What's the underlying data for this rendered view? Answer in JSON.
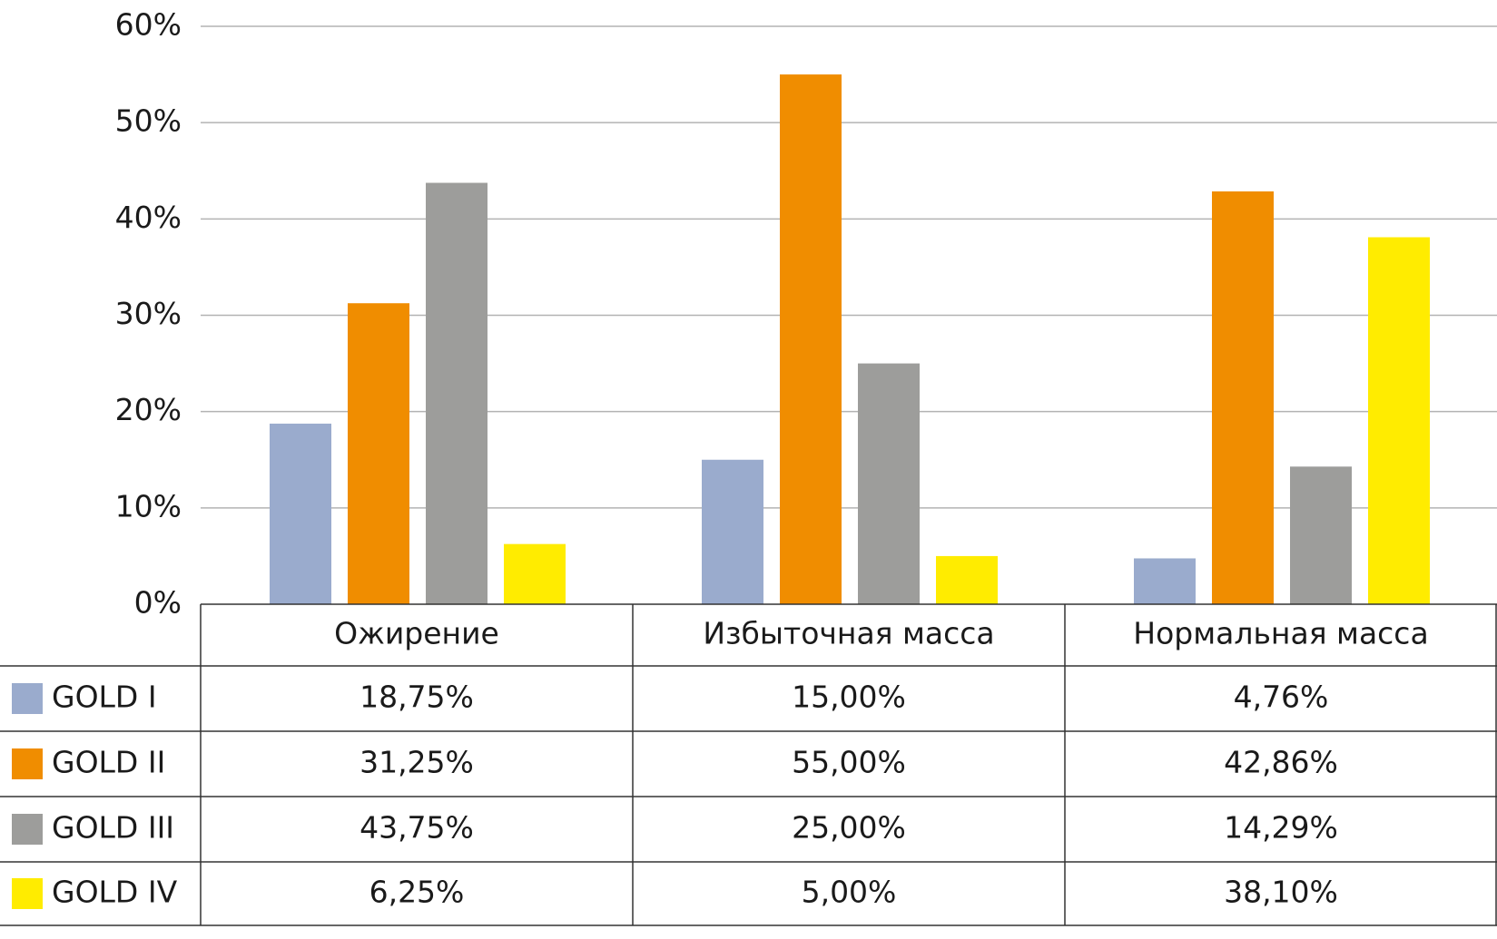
{
  "chart_data": {
    "type": "bar",
    "categories": [
      "Ожирение",
      "Избыточная масса",
      "Нормальная масса"
    ],
    "series": [
      {
        "name": "GOLD I",
        "color": "#9aabcd",
        "values": [
          18.75,
          15.0,
          4.76
        ],
        "value_labels": [
          "18,75%",
          "15,00%",
          "4,76%"
        ]
      },
      {
        "name": "GOLD II",
        "color": "#f08d00",
        "values": [
          31.25,
          55.0,
          42.86
        ],
        "value_labels": [
          "31,25%",
          "55,00%",
          "42,86%"
        ]
      },
      {
        "name": "GOLD III",
        "color": "#9d9d9b",
        "values": [
          43.75,
          25.0,
          14.29
        ],
        "value_labels": [
          "43,75%",
          "25,00%",
          "14,29%"
        ]
      },
      {
        "name": "GOLD IV",
        "color": "#ffec00",
        "values": [
          6.25,
          5.0,
          38.1
        ],
        "value_labels": [
          "6,25%",
          "5,00%",
          "38,10%"
        ]
      }
    ],
    "ylim": [
      0,
      60
    ],
    "yticks": [
      {
        "value": 0,
        "label": "0%"
      },
      {
        "value": 10,
        "label": "10%"
      },
      {
        "value": 20,
        "label": "20%"
      },
      {
        "value": 30,
        "label": "30%"
      },
      {
        "value": 40,
        "label": "40%"
      },
      {
        "value": 50,
        "label": "50%"
      },
      {
        "value": 60,
        "label": "60%"
      }
    ],
    "grid": true,
    "legend": "table"
  }
}
